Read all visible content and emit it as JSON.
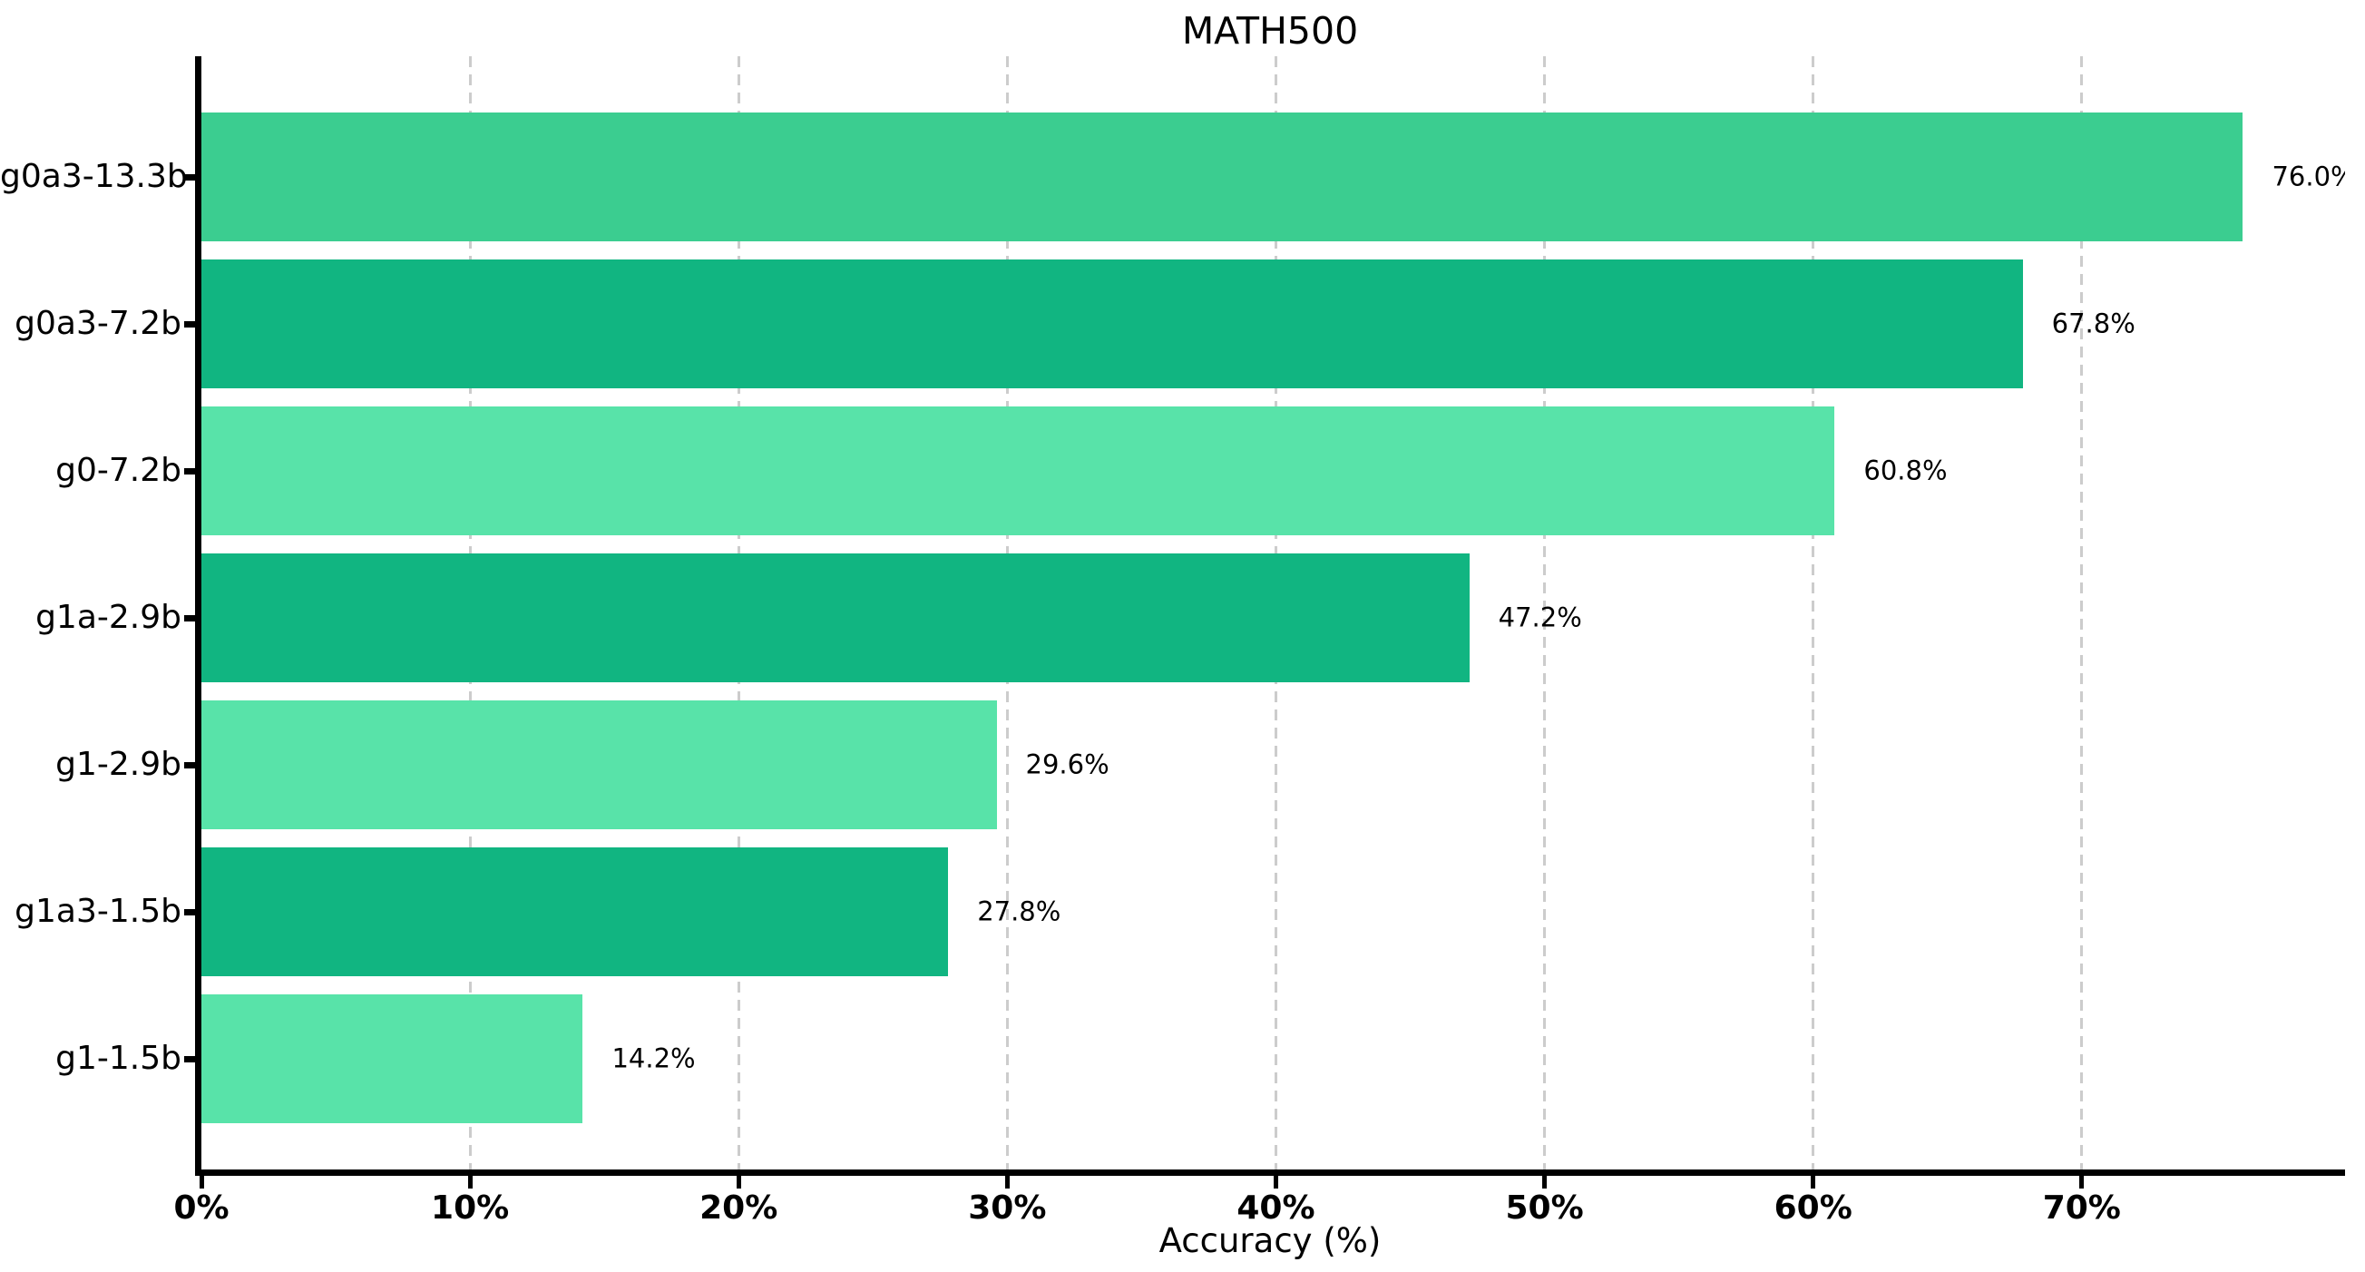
{
  "chart_data": {
    "type": "bar",
    "orientation": "horizontal",
    "title": "MATH500",
    "xlabel": "Accuracy (%)",
    "categories": [
      "g0a3-13.3b",
      "g0a3-7.2b",
      "g0-7.2b",
      "g1a-2.9b",
      "g1-2.9b",
      "g1a3-1.5b",
      "g1-1.5b"
    ],
    "values": [
      76.0,
      67.8,
      60.8,
      47.2,
      29.6,
      27.8,
      14.2
    ],
    "value_labels": [
      "76.0%",
      "67.8%",
      "60.8%",
      "47.2%",
      "29.6%",
      "27.8%",
      "14.2%"
    ],
    "bar_colors": [
      "#3bcd90",
      "#11b581",
      "#58e3a9",
      "#11b581",
      "#58e3a9",
      "#11b581",
      "#58e3a9"
    ],
    "xlim": [
      0,
      79.8
    ],
    "xticks": [
      {
        "value": 0,
        "label": "0%"
      },
      {
        "value": 10,
        "label": "10%"
      },
      {
        "value": 20,
        "label": "20%"
      },
      {
        "value": 30,
        "label": "30%"
      },
      {
        "value": 40,
        "label": "40%"
      },
      {
        "value": 50,
        "label": "50%"
      },
      {
        "value": 60,
        "label": "60%"
      },
      {
        "value": 70,
        "label": "70%"
      }
    ],
    "grid": {
      "show": true,
      "axis": "x",
      "style": "dashed",
      "color": "#cccccc"
    },
    "legend": {
      "show": false
    },
    "colors": {
      "background": "#ffffff",
      "axis": "#000000",
      "text": "#000000",
      "grid": "#cccccc"
    }
  }
}
